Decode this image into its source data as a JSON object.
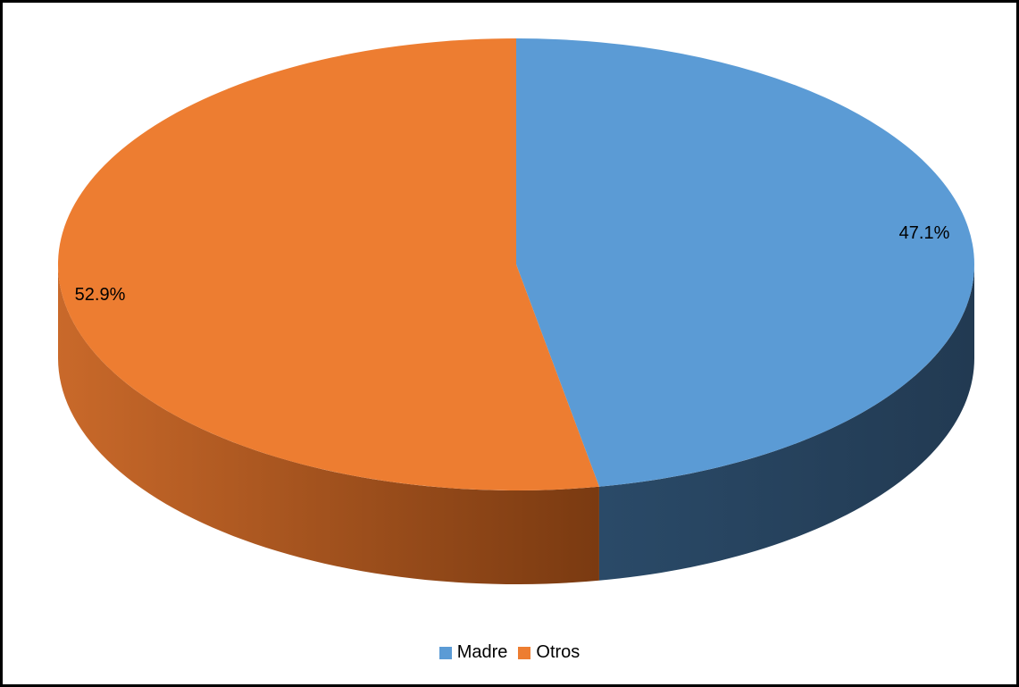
{
  "chart_data": {
    "type": "pie",
    "style": "3d",
    "categories": [
      "Madre",
      "Otros"
    ],
    "values": [
      47.1,
      52.9
    ],
    "data_labels": [
      "47.1%",
      "52.9%"
    ],
    "colors": [
      "#5b9bd5",
      "#ed7d31"
    ],
    "title": "",
    "legend_position": "bottom"
  },
  "legend": {
    "items": [
      {
        "label": "Madre",
        "color": "#5b9bd5"
      },
      {
        "label": "Otros",
        "color": "#ed7d31"
      }
    ]
  }
}
